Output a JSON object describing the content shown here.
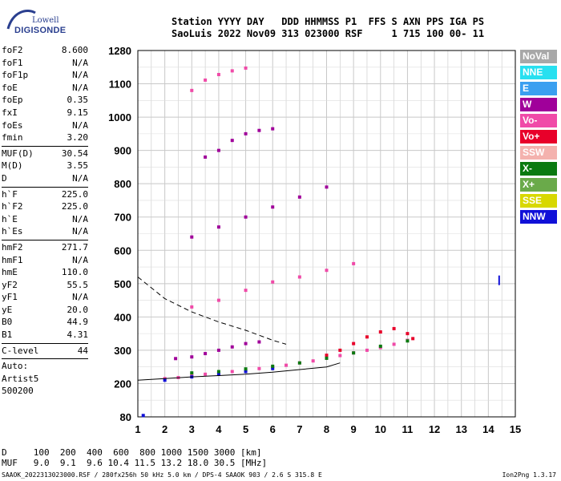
{
  "logo": {
    "top": "Lowell",
    "bottom": "DIGISONDE"
  },
  "header": {
    "line1": "Station YYYY DAY   DDD HHMMSS P1  FFS S AXN PPS IGA PS",
    "line2": "SaoLuis 2022 Nov09 313 023000 RSF     1 715 100 00- 11"
  },
  "params": [
    {
      "label": "foF2",
      "value": "8.600"
    },
    {
      "label": "foF1",
      "value": "N/A"
    },
    {
      "label": "foF1p",
      "value": "N/A"
    },
    {
      "label": "foE",
      "value": "N/A"
    },
    {
      "label": "foEp",
      "value": "0.35"
    },
    {
      "label": "fxI",
      "value": "9.15"
    },
    {
      "label": "foEs",
      "value": "N/A"
    },
    {
      "label": "fmin",
      "value": "3.20"
    },
    {
      "sep": true
    },
    {
      "label": "MUF(D)",
      "value": "30.54"
    },
    {
      "label": "M(D)",
      "value": "3.55"
    },
    {
      "label": "D",
      "value": "N/A"
    },
    {
      "sep": true
    },
    {
      "label": "h`F",
      "value": "225.0"
    },
    {
      "label": "h`F2",
      "value": "225.0"
    },
    {
      "label": "h`E",
      "value": "N/A"
    },
    {
      "label": "h`Es",
      "value": "N/A"
    },
    {
      "sep": true
    },
    {
      "label": "hmF2",
      "value": "271.7"
    },
    {
      "label": "hmF1",
      "value": "N/A"
    },
    {
      "label": "hmE",
      "value": "110.0"
    },
    {
      "label": "yF2",
      "value": "55.5"
    },
    {
      "label": "yF1",
      "value": "N/A"
    },
    {
      "label": "yE",
      "value": "20.0"
    },
    {
      "label": "B0",
      "value": "44.9"
    },
    {
      "label": "B1",
      "value": "4.31"
    },
    {
      "sep": true
    },
    {
      "label": "C-level",
      "value": "44"
    },
    {
      "sep": true
    },
    {
      "label": "Auto:",
      "value": ""
    },
    {
      "label": "Artist5",
      "value": ""
    },
    {
      "label": "500200",
      "value": ""
    }
  ],
  "legend": [
    {
      "label": "NoVal",
      "color": "#a8a8a8"
    },
    {
      "label": "NNE",
      "color": "#28e0f0"
    },
    {
      "label": "E",
      "color": "#3a9ff0"
    },
    {
      "label": "W",
      "color": "#a0009a"
    },
    {
      "label": "Vo-",
      "color": "#f04aa8"
    },
    {
      "label": "Vo+",
      "color": "#e8002a"
    },
    {
      "label": "SSW",
      "color": "#f4b2ae"
    },
    {
      "label": "X-",
      "color": "#0a7a10"
    },
    {
      "label": "X+",
      "color": "#6aaa4a"
    },
    {
      "label": "SSE",
      "color": "#d8d800"
    },
    {
      "label": "NNW",
      "color": "#1010d8"
    }
  ],
  "bottom": {
    "d_line": "D     100  200  400  600  800 1000 1500 3000 [km]",
    "muf_line": "MUF   9.0  9.1  9.6 10.4 11.5 13.2 18.0 30.5 [MHz]"
  },
  "footer": "SAAOK_2022313023000.RSF / 280fx256h 50 kHz 5.0 km / DPS-4 SAAOK 903 / 2.6 S 315.8 E",
  "version": "Ion2Png 1.3.17",
  "chart_data": {
    "type": "scatter",
    "x_ticks": [
      1,
      2,
      3,
      4,
      5,
      6,
      7,
      8,
      9,
      10,
      11,
      12,
      13,
      14,
      15
    ],
    "y_ticks": [
      80,
      200,
      300,
      400,
      500,
      600,
      700,
      800,
      900,
      1000,
      1100,
      1280
    ],
    "xlim": [
      1,
      15
    ],
    "ylim": [
      80,
      1280
    ],
    "grid": true,
    "series": [
      {
        "color": "#f04aa8",
        "x": [
          2.0,
          2.5,
          3.0,
          3.5,
          4.0,
          4.5,
          5.0,
          5.5,
          6.0,
          6.5,
          7.0,
          7.5,
          8.0,
          8.5,
          9.0,
          9.5,
          10.0,
          10.5,
          11.0
        ],
        "y": [
          215,
          218,
          225,
          228,
          232,
          236,
          240,
          245,
          250,
          255,
          262,
          268,
          276,
          284,
          292,
          300,
          308,
          318,
          330
        ]
      },
      {
        "color": "#e8002a",
        "x": [
          8.0,
          8.5,
          9.0,
          9.5,
          10.0,
          10.5,
          11.0,
          11.2
        ],
        "y": [
          285,
          300,
          320,
          340,
          355,
          365,
          350,
          335
        ]
      },
      {
        "color": "#1010d8",
        "x": [
          1.2,
          2.0,
          3.0,
          4.0,
          5.0,
          6.0
        ],
        "y": [
          85,
          210,
          220,
          228,
          236,
          245
        ]
      },
      {
        "color": "#a0009a",
        "x": [
          2.4,
          3.0,
          3.5,
          4.0,
          4.5,
          5.0,
          5.5
        ],
        "y": [
          275,
          280,
          290,
          300,
          310,
          320,
          325
        ]
      },
      {
        "color": "#0a7a10",
        "x": [
          3.0,
          4.0,
          5.0,
          6.0,
          7.0,
          8.0,
          9.0,
          10.0,
          11.0
        ],
        "y": [
          232,
          236,
          244,
          252,
          262,
          276,
          292,
          312,
          328
        ]
      },
      {
        "color": "#f04aa8",
        "x": [
          3.0,
          4.0,
          5.0,
          6.0,
          7.0,
          8.0,
          9.0
        ],
        "y": [
          430,
          450,
          480,
          505,
          520,
          540,
          560
        ]
      },
      {
        "color": "#a0009a",
        "x": [
          3.0,
          4.0,
          5.0,
          6.0,
          7.0,
          8.0
        ],
        "y": [
          640,
          670,
          700,
          730,
          760,
          790
        ]
      },
      {
        "color": "#a0009a",
        "x": [
          3.5,
          4.0,
          4.5,
          5.0,
          5.5,
          6.0
        ],
        "y": [
          880,
          900,
          930,
          950,
          960,
          965
        ]
      },
      {
        "color": "#f04aa8",
        "x": [
          3.0,
          3.5,
          4.0,
          4.5,
          5.0
        ],
        "y": [
          1080,
          1120,
          1150,
          1170,
          1185
        ]
      }
    ],
    "outliers": {
      "color": "#1010d8",
      "x": [
        14.4
      ],
      "y": [
        510
      ]
    },
    "curve_dashed": {
      "x": [
        1.0,
        2.0,
        3.0,
        4.0,
        5.0,
        6.0,
        6.5
      ],
      "y": [
        520,
        455,
        415,
        385,
        360,
        330,
        318
      ]
    },
    "curve_solid": {
      "x": [
        1.0,
        2.0,
        3.0,
        4.0,
        5.0,
        6.0,
        7.0,
        8.0,
        8.5
      ],
      "y": [
        210,
        215,
        220,
        224,
        228,
        234,
        242,
        250,
        262
      ]
    }
  }
}
